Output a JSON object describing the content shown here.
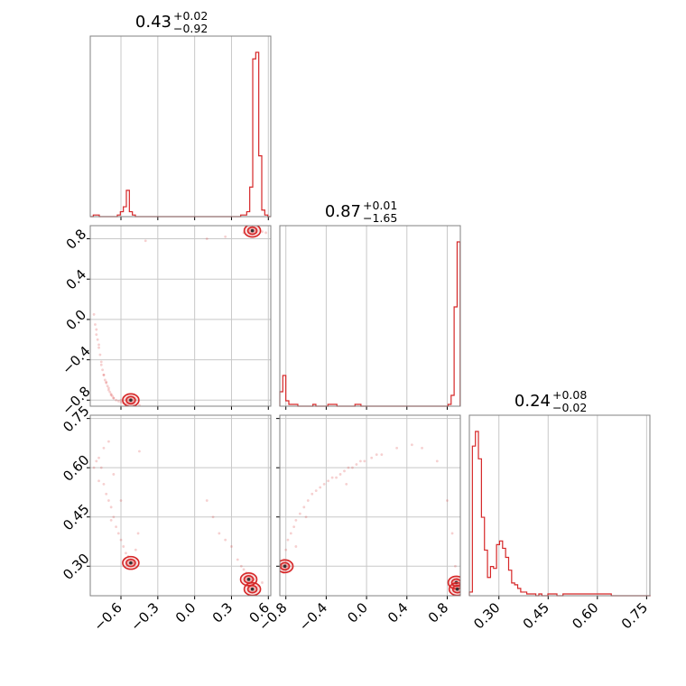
{
  "chart_data": {
    "type": "corner",
    "color": "#d62728",
    "grid": true,
    "parameters": [
      {
        "median": "0.43",
        "plus": "+0.02",
        "minus": "−0.92",
        "range": [
          -0.85,
          0.62
        ],
        "ticks": [
          -0.6,
          -0.3,
          0.0,
          0.3,
          0.6
        ],
        "tick_labels": [
          "−0.6",
          "−0.3",
          "0.0",
          "0.3",
          "0.6"
        ]
      },
      {
        "median": "0.87",
        "plus": "+0.01",
        "minus": "−1.65",
        "range": [
          -0.86,
          0.93
        ],
        "ticks": [
          -0.8,
          -0.4,
          0.0,
          0.4,
          0.8
        ],
        "tick_labels": [
          "−0.8",
          "−0.4",
          "0.0",
          "0.4",
          "0.8"
        ]
      },
      {
        "median": "0.24",
        "plus": "+0.08",
        "minus": "−0.02",
        "range": [
          0.21,
          0.76
        ],
        "ticks": [
          0.3,
          0.45,
          0.6,
          0.75
        ],
        "tick_labels": [
          "0.30",
          "0.45",
          "0.60",
          "0.75"
        ]
      }
    ],
    "histograms": [
      {
        "param": 0,
        "edges_start": -0.85,
        "bin_width": 0.0245,
        "counts": [
          0,
          1,
          1,
          0,
          0,
          0,
          0,
          0,
          0,
          1,
          3,
          6,
          16,
          3,
          1,
          0,
          0,
          0,
          0,
          0,
          0,
          0,
          0,
          0,
          0,
          0,
          0,
          0,
          0,
          0,
          0,
          0,
          0,
          0,
          0,
          0,
          0,
          0,
          0,
          0,
          0,
          0,
          0,
          0,
          0,
          0,
          0,
          0,
          0,
          0,
          1,
          1,
          3,
          18,
          96,
          100,
          37,
          4,
          1,
          0
        ]
      },
      {
        "param": 1,
        "edges_start": -0.86,
        "bin_width": 0.0298,
        "counts": [
          8,
          17,
          3,
          1,
          1,
          1,
          0,
          0,
          0,
          0,
          0,
          1,
          0,
          0,
          0,
          0,
          1,
          1,
          1,
          0,
          0,
          0,
          0,
          0,
          0,
          1,
          1,
          0,
          0,
          0,
          0,
          0,
          0,
          0,
          0,
          0,
          0,
          0,
          0,
          0,
          0,
          0,
          0,
          0,
          0,
          0,
          0,
          0,
          0,
          0,
          0,
          0,
          0,
          0,
          0,
          0,
          1,
          6,
          55,
          91
        ]
      },
      {
        "param": 2,
        "edges_start": 0.21,
        "bin_width": 0.0092,
        "counts": [
          2,
          82,
          90,
          75,
          43,
          25,
          10,
          16,
          15,
          28,
          30,
          26,
          21,
          14,
          7,
          6,
          4,
          2,
          2,
          1,
          1,
          1,
          0,
          1,
          0,
          0,
          1,
          1,
          1,
          0,
          0,
          1,
          1,
          1,
          1,
          1,
          1,
          1,
          1,
          1,
          1,
          1,
          1,
          1,
          1,
          1,
          1,
          0,
          0,
          0,
          0,
          0,
          0,
          0,
          0,
          0,
          0,
          0,
          0,
          0
        ]
      }
    ],
    "pairs": [
      {
        "x": 0,
        "y": 1,
        "scatter_x": [
          -0.82,
          -0.81,
          -0.8,
          -0.79,
          -0.78,
          -0.77,
          -0.76,
          -0.75,
          -0.74,
          -0.73,
          -0.72,
          -0.71,
          -0.7,
          -0.69,
          -0.68,
          -0.67,
          -0.66,
          -0.64,
          -0.62,
          -0.6,
          -0.58,
          -0.56,
          -0.54,
          -0.52,
          -0.7,
          -0.72,
          -0.74,
          -0.76,
          -0.68,
          -0.66,
          -0.78,
          -0.8,
          -0.6,
          -0.5,
          -0.45,
          0.1,
          0.25,
          0.4,
          0.5,
          0.55,
          0.58,
          -0.4
        ],
        "scatter_y": [
          0.05,
          -0.05,
          -0.15,
          -0.2,
          -0.28,
          -0.35,
          -0.42,
          -0.5,
          -0.55,
          -0.6,
          -0.63,
          -0.66,
          -0.7,
          -0.72,
          -0.74,
          -0.76,
          -0.78,
          -0.8,
          -0.81,
          -0.82,
          -0.83,
          -0.84,
          -0.84,
          -0.85,
          -0.68,
          -0.62,
          -0.55,
          -0.45,
          -0.75,
          -0.78,
          -0.25,
          -0.1,
          -0.8,
          -0.84,
          -0.85,
          0.8,
          0.82,
          0.86,
          0.88,
          0.87,
          0.86,
          0.78
        ],
        "density_peaks": [
          {
            "x": 0.47,
            "y": 0.88
          },
          {
            "x": -0.52,
            "y": -0.8
          }
        ]
      },
      {
        "x": 0,
        "y": 2,
        "scatter_x": [
          -0.82,
          -0.8,
          -0.78,
          -0.76,
          -0.74,
          -0.72,
          -0.7,
          -0.68,
          -0.66,
          -0.64,
          -0.62,
          -0.6,
          -0.58,
          -0.56,
          -0.54,
          -0.52,
          -0.5,
          -0.48,
          -0.46,
          -0.7,
          -0.74,
          -0.66,
          0.1,
          0.15,
          0.2,
          0.25,
          0.3,
          0.35,
          0.38,
          0.4,
          0.42,
          0.45,
          0.48,
          0.5,
          0.52,
          0.55,
          -0.45,
          -0.6,
          -0.78,
          -0.68
        ],
        "scatter_y": [
          0.6,
          0.62,
          0.63,
          0.6,
          0.55,
          0.52,
          0.5,
          0.48,
          0.45,
          0.42,
          0.4,
          0.38,
          0.36,
          0.34,
          0.33,
          0.32,
          0.31,
          0.35,
          0.4,
          0.68,
          0.66,
          0.58,
          0.5,
          0.45,
          0.4,
          0.38,
          0.36,
          0.32,
          0.3,
          0.29,
          0.28,
          0.27,
          0.26,
          0.25,
          0.24,
          0.25,
          0.65,
          0.5,
          0.56,
          0.44
        ],
        "density_peaks": [
          {
            "x": -0.52,
            "y": 0.31
          },
          {
            "x": 0.44,
            "y": 0.26
          },
          {
            "x": 0.47,
            "y": 0.23
          }
        ]
      },
      {
        "x": 1,
        "y": 2,
        "scatter_x": [
          -0.84,
          -0.82,
          -0.8,
          -0.78,
          -0.75,
          -0.72,
          -0.7,
          -0.66,
          -0.62,
          -0.58,
          -0.54,
          -0.5,
          -0.46,
          -0.42,
          -0.38,
          -0.34,
          -0.3,
          -0.26,
          -0.22,
          -0.18,
          -0.14,
          -0.1,
          -0.06,
          -0.02,
          0.05,
          0.15,
          0.3,
          0.45,
          0.55,
          0.7,
          0.8,
          0.85,
          0.88,
          0.9,
          0.86,
          -0.6,
          -0.2,
          0.1,
          -0.7,
          -0.82
        ],
        "scatter_y": [
          0.3,
          0.32,
          0.35,
          0.38,
          0.4,
          0.42,
          0.44,
          0.46,
          0.48,
          0.5,
          0.52,
          0.53,
          0.54,
          0.55,
          0.56,
          0.57,
          0.57,
          0.58,
          0.59,
          0.6,
          0.6,
          0.61,
          0.62,
          0.62,
          0.63,
          0.64,
          0.66,
          0.67,
          0.66,
          0.62,
          0.5,
          0.4,
          0.3,
          0.26,
          0.24,
          0.45,
          0.55,
          0.64,
          0.36,
          0.28
        ],
        "density_peaks": [
          {
            "x": -0.81,
            "y": 0.3
          },
          {
            "x": 0.89,
            "y": 0.25
          },
          {
            "x": 0.9,
            "y": 0.23
          }
        ]
      }
    ]
  }
}
